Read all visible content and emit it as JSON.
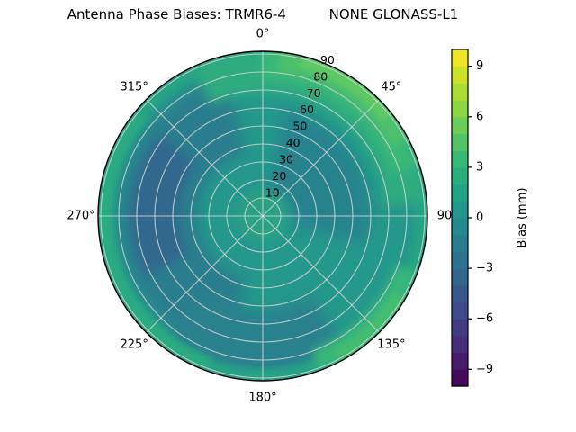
{
  "title": "Antenna Phase Biases: TRMR6-4          NONE GLONASS-L1",
  "chart_data": {
    "type": "heatmap",
    "projection": "polar",
    "description": "Polar contour map of antenna phase bias (mm) versus azimuth (angular axis, degrees clockwise from top) and zenith angle (radial axis, 0 at center to 90 at edge)",
    "azimuth_ticks": [
      {
        "angle_deg": 0,
        "label": "0°"
      },
      {
        "angle_deg": 45,
        "label": "45°"
      },
      {
        "angle_deg": 90,
        "label": "90"
      },
      {
        "angle_deg": 135,
        "label": "135°"
      },
      {
        "angle_deg": 180,
        "label": "180°"
      },
      {
        "angle_deg": 225,
        "label": "225°"
      },
      {
        "angle_deg": 270,
        "label": "270°"
      },
      {
        "angle_deg": 315,
        "label": "315°"
      }
    ],
    "radial_ticks": [
      "10",
      "20",
      "30",
      "40",
      "50",
      "60",
      "70",
      "80",
      "90"
    ],
    "radial_tick_values": [
      10,
      20,
      30,
      40,
      50,
      60,
      70,
      80,
      90
    ],
    "radial_tick_label_azimuth_deg": 22.5,
    "r_max": 91.5,
    "grid": true,
    "colorbar": {
      "label": "Bias (mm)",
      "min": -10,
      "max": 10,
      "level_step_mm": 1,
      "tick_values": [
        9,
        6,
        3,
        0,
        -3,
        -6,
        -9
      ],
      "tick_labels": [
        "9",
        "6",
        "3",
        "0",
        "−3",
        "−6",
        "−9"
      ],
      "segment_colors_bottom_to_top": [
        "#450a5c",
        "#471b6c",
        "#472c7a",
        "#423b82",
        "#3e4a89",
        "#38588b",
        "#32668e",
        "#2d728e",
        "#287e8e",
        "#248a8d",
        "#21968a",
        "#23a286",
        "#2dae7f",
        "#39b977",
        "#53c368",
        "#6ccd59",
        "#8cd545",
        "#acdc31",
        "#cce129",
        "#ede526"
      ]
    },
    "field_samples_bias_mm": {
      "azimuth_deg": [
        0,
        45,
        90,
        135,
        180,
        225,
        270,
        315
      ],
      "zenith_deg": [
        0,
        30,
        60,
        90
      ],
      "values_by_zenith": [
        [
          1.0,
          1.0,
          1.0,
          1.0,
          1.0,
          1.0,
          1.0,
          1.0
        ],
        [
          0.5,
          -1.0,
          -1.0,
          0.5,
          0.5,
          0.5,
          0.5,
          0.5
        ],
        [
          0.5,
          0.0,
          -0.5,
          0.5,
          -1.0,
          -1.5,
          -3.0,
          -0.5
        ],
        [
          3.0,
          5.5,
          2.5,
          3.5,
          1.5,
          2.5,
          2.5,
          1.5
        ]
      ]
    },
    "field_regions": [
      {
        "name": "background",
        "az_deg": [
          0,
          360
        ],
        "r": [
          0,
          91.5
        ],
        "bias_mm": 0.5,
        "color": "#24988b",
        "blur": 0
      },
      {
        "name": "dark-band-left",
        "az_deg": [
          195,
          345
        ],
        "r": [
          36,
          80
        ],
        "bias_mm": -1.5,
        "color": "#2b7d8e",
        "blur": 8
      },
      {
        "name": "dark-core-west",
        "az_deg": [
          243,
          308
        ],
        "r": [
          47,
          73
        ],
        "bias_mm": -3.0,
        "color": "#32688e",
        "blur": 6
      },
      {
        "name": "dark-band-bottom",
        "az_deg": [
          148,
          218
        ],
        "r": [
          52,
          88
        ],
        "bias_mm": -1.0,
        "color": "#29818e",
        "blur": 8
      },
      {
        "name": "dark-patch-ne",
        "az_deg": [
          12,
          105
        ],
        "r": [
          14,
          60
        ],
        "bias_mm": -1.0,
        "color": "#28838e",
        "blur": 8
      },
      {
        "name": "center-blob",
        "az_deg": [
          0,
          360
        ],
        "r": [
          0,
          14
        ],
        "bias_mm": 1.5,
        "color": "#2aa185",
        "blur": 6
      },
      {
        "name": "green-rim",
        "az_deg": [
          0,
          360
        ],
        "r": [
          85,
          91.5
        ],
        "bias_mm": 2.0,
        "color": "#28a483",
        "blur": 4
      },
      {
        "name": "green-left-edge",
        "az_deg": [
          200,
          310
        ],
        "r": [
          84,
          91.5
        ],
        "bias_mm": 2.5,
        "color": "#2cab81",
        "blur": 4
      },
      {
        "name": "green-ne-outer-1",
        "az_deg": [
          335,
          85
        ],
        "r": [
          68,
          91.5
        ],
        "bias_mm": 2.5,
        "color": "#2dac80",
        "blur": 6
      },
      {
        "name": "green-ne-outer-2",
        "az_deg": [
          0,
          72
        ],
        "r": [
          76,
          91.5
        ],
        "bias_mm": 3.5,
        "color": "#3ab878",
        "blur": 5
      },
      {
        "name": "green-ne-outer-3",
        "az_deg": [
          6,
          62
        ],
        "r": [
          81,
          91.5
        ],
        "bias_mm": 4.5,
        "color": "#4dc06c",
        "blur": 4
      },
      {
        "name": "green-ne-outer-4",
        "az_deg": [
          14,
          52
        ],
        "r": [
          85,
          91.5
        ],
        "bias_mm": 5.5,
        "color": "#5fc963",
        "blur": 3
      },
      {
        "name": "green-se-outer-1",
        "az_deg": [
          110,
          160
        ],
        "r": [
          79,
          91.5
        ],
        "bias_mm": 3.0,
        "color": "#37b57a",
        "blur": 5
      },
      {
        "name": "green-se-outer-2",
        "az_deg": [
          120,
          152
        ],
        "r": [
          84,
          91.5
        ],
        "bias_mm": 4.0,
        "color": "#44bd70",
        "blur": 4
      }
    ]
  }
}
